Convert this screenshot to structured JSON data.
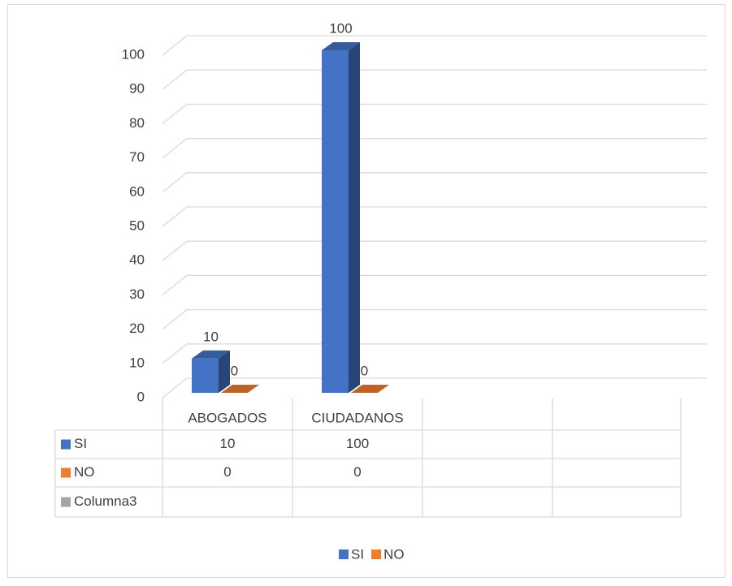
{
  "chart_data": {
    "type": "bar3d",
    "categories": [
      "ABOGADOS",
      "CIUDADANOS",
      null,
      null
    ],
    "series": [
      {
        "name": "SI",
        "color": "#4472c4",
        "values": [
          10,
          100,
          null,
          null
        ]
      },
      {
        "name": "NO",
        "color": "#ed7d31",
        "values": [
          0,
          0,
          null,
          null
        ]
      },
      {
        "name": "Columna3",
        "color": "#a5a5a5",
        "values": [
          null,
          null,
          null,
          null
        ]
      }
    ],
    "ylim": [
      0,
      100
    ],
    "yticks": [
      0,
      10,
      20,
      30,
      40,
      50,
      60,
      70,
      80,
      90,
      100
    ],
    "grid": true,
    "legend": "bottom"
  }
}
